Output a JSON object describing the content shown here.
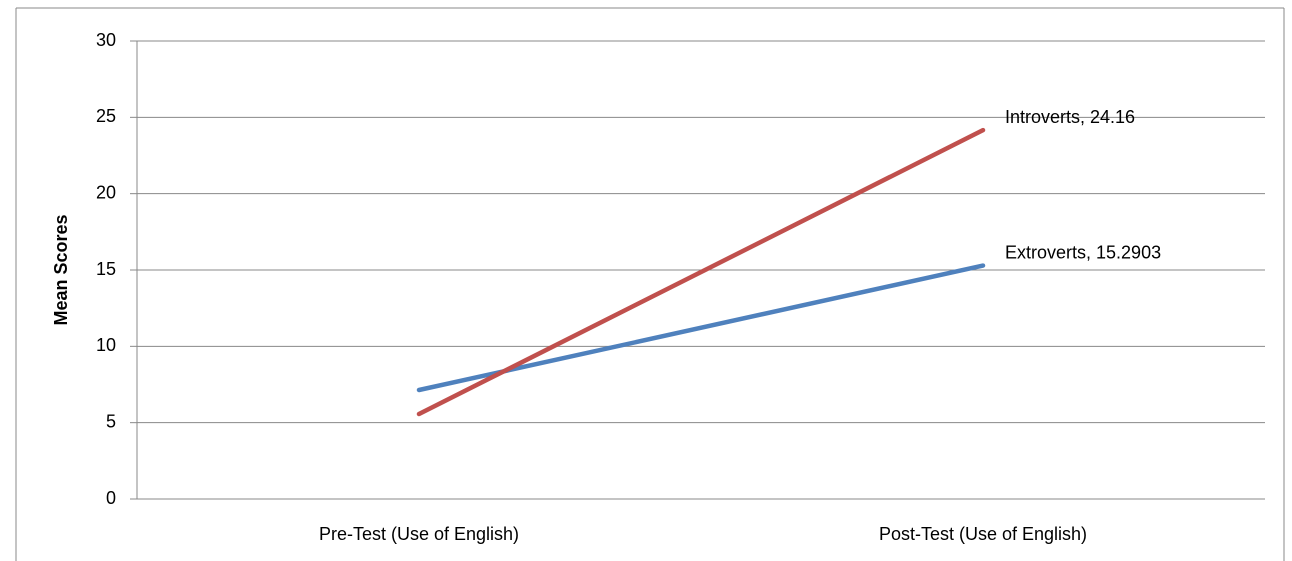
{
  "chart_data": {
    "type": "line",
    "y_label": "Mean Scores",
    "categories": [
      "Pre-Test (Use of English)",
      "Post-Test (Use of English)"
    ],
    "series": [
      {
        "name": "Extroverts",
        "color": "#4f81bd",
        "values": [
          7.14,
          15.2903
        ],
        "value_labels": [
          null,
          "Extroverts, 15.2903"
        ]
      },
      {
        "name": "Introverts",
        "color": "#c0504d",
        "values": [
          5.57,
          24.16
        ],
        "value_labels": [
          null,
          "Introverts, 24.16"
        ]
      }
    ],
    "ylim": [
      0,
      30
    ],
    "yticks": [
      0,
      5,
      10,
      15,
      20,
      25,
      30
    ],
    "grid": true
  }
}
